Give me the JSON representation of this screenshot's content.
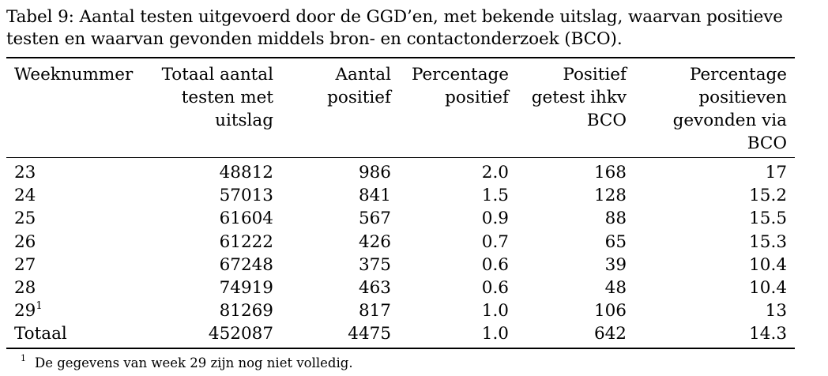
{
  "caption": "Tabel 9: Aantal testen uitgevoerd door de GGD’en, met bekende uitslag, waarvan positieve testen en waarvan gevonden middels bron- en contactonderzoek (BCO).",
  "columns": [
    "Weeknummer",
    "Totaal aantal\ntesten met\nuitslag",
    "Aantal\npositief",
    "Percentage\npositief",
    "Positief\ngetest ihkv\nBCO",
    "Percentage\npositieven\ngevonden via\nBCO"
  ],
  "rows": [
    {
      "week": "23",
      "mark": "",
      "total": "48812",
      "positive": "986",
      "pct_positive": "2.0",
      "bco": "168",
      "pct_bco": "17"
    },
    {
      "week": "24",
      "mark": "",
      "total": "57013",
      "positive": "841",
      "pct_positive": "1.5",
      "bco": "128",
      "pct_bco": "15.2"
    },
    {
      "week": "25",
      "mark": "",
      "total": "61604",
      "positive": "567",
      "pct_positive": "0.9",
      "bco": "88",
      "pct_bco": "15.5"
    },
    {
      "week": "26",
      "mark": "",
      "total": "61222",
      "positive": "426",
      "pct_positive": "0.7",
      "bco": "65",
      "pct_bco": "15.3"
    },
    {
      "week": "27",
      "mark": "",
      "total": "67248",
      "positive": "375",
      "pct_positive": "0.6",
      "bco": "39",
      "pct_bco": "10.4"
    },
    {
      "week": "28",
      "mark": "",
      "total": "74919",
      "positive": "463",
      "pct_positive": "0.6",
      "bco": "48",
      "pct_bco": "10.4"
    },
    {
      "week": "29",
      "mark": "1",
      "total": "81269",
      "positive": "817",
      "pct_positive": "1.0",
      "bco": "106",
      "pct_bco": "13"
    },
    {
      "week": "Totaal",
      "mark": "",
      "total": "452087",
      "positive": "4475",
      "pct_positive": "1.0",
      "bco": "642",
      "pct_bco": "14.3"
    }
  ],
  "footnote": {
    "mark": "1",
    "text": "De gegevens van week 29 zijn nog niet volledig."
  }
}
